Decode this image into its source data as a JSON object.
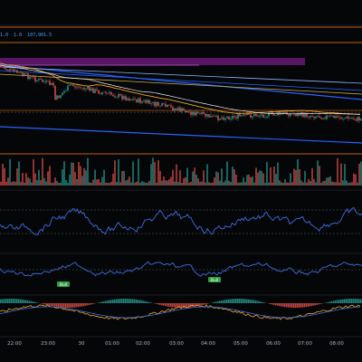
{
  "window": {
    "background": "#050608",
    "pane_separator_color": "#1c1f27"
  },
  "price_pane": {
    "ohlc_readout_fragments": [
      "1.0",
      "1.0",
      "107,901.5"
    ],
    "up_color": "#26a69a",
    "down_color": "#ef5350",
    "sma_color": "#f5a623",
    "ema_color": "#e8ecf2",
    "volume_profile_band_color": "#9c27b0",
    "orange_level_color": "#ff7b1a",
    "blue_trend_color": "#2962ff",
    "pale_trend_color": "#8fb3ff",
    "yellow_trend_color": "#c9b04a"
  },
  "oscillator_pane_1": {
    "line_color": "#3b6fe0",
    "level_color": "#5a5f6b"
  },
  "oscillator_pane_2": {
    "line_color": "#3b6fe0",
    "signals": [
      "Bull",
      "Bull"
    ],
    "signal_color": "#2ea043"
  },
  "macd_pane": {
    "macd_color": "#f5a623",
    "signal_color": "#3b6fe0",
    "hist_up_color": "#26a69a",
    "hist_down_color": "#ef5350"
  },
  "time_axis": {
    "labels": [
      "22:00",
      "23:00",
      "30",
      "01:00",
      "02:00",
      "03:00",
      "04:00",
      "05:00",
      "06:00",
      "07:00",
      "08:00"
    ],
    "text_color": "#b2b5be"
  }
}
